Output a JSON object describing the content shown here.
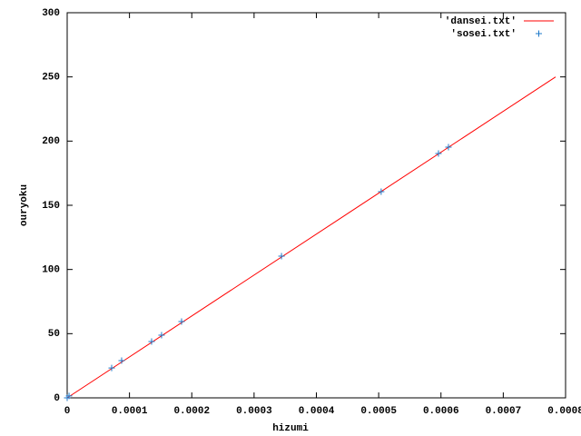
{
  "chart_data": {
    "type": "line",
    "xlabel": "hizumi",
    "ylabel": "ouryoku",
    "xlim": [
      0,
      0.0008
    ],
    "xticks": [
      0,
      0.0001,
      0.0002,
      0.0003,
      0.0004,
      0.0005,
      0.0006,
      0.0007,
      0.0008
    ],
    "ylim": [
      0,
      300
    ],
    "yticks": [
      0,
      50,
      100,
      150,
      200,
      250,
      300
    ],
    "legend": "top-right",
    "series": [
      {
        "name": "'dansei.txt'",
        "style": "lines",
        "color": "#ff0000",
        "x": [
          0,
          0.000784
        ],
        "y": [
          0,
          250
        ]
      },
      {
        "name": "'sosei.txt'",
        "style": "points",
        "color": "#1e78c8",
        "x": [
          0,
          3e-06,
          7.14e-05,
          8.74e-05,
          0.0001355,
          0.0001515,
          0.0001836,
          0.000344,
          0.000504,
          0.000596,
          0.000612
        ],
        "y": [
          0,
          1.5,
          23.3,
          29,
          43.9,
          48.8,
          59.4,
          110.4,
          160.6,
          190.3,
          195.3
        ]
      }
    ]
  }
}
